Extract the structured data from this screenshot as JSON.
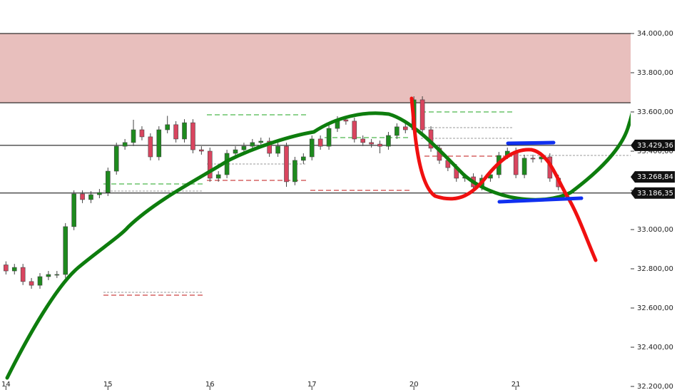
{
  "chart_data": {
    "type": "candlestick",
    "categories": [
      null,
      null,
      null,
      null,
      null,
      null,
      null,
      null,
      null,
      null,
      null,
      null,
      null,
      null,
      null,
      null,
      null,
      null,
      null,
      null,
      null,
      null,
      null,
      null,
      null,
      null,
      null,
      null,
      null,
      null,
      null,
      null,
      null,
      null,
      null,
      null,
      null,
      null,
      null,
      null,
      null,
      null,
      null,
      null,
      null,
      null,
      null,
      null,
      null,
      null,
      null,
      null,
      null,
      null,
      null,
      null,
      null,
      null,
      null,
      null,
      null,
      null,
      null,
      null,
      null,
      null
    ],
    "open": [
      32820,
      32789,
      32807,
      32735,
      32716,
      32760,
      32771,
      32771,
      33015,
      33182,
      33153,
      33178,
      33189,
      33298,
      33425,
      33444,
      33509,
      33473,
      33371,
      33509,
      33535,
      33462,
      33545,
      33407,
      33400,
      33262,
      33280,
      33389,
      33407,
      33425,
      33444,
      33451,
      33389,
      33425,
      33244,
      33353,
      33371,
      33462,
      33425,
      33516,
      33560,
      33553,
      33462,
      33444,
      33436,
      33425,
      33480,
      33524,
      33509,
      33662,
      33509,
      33415,
      33353,
      33316,
      33262,
      33269,
      33218,
      33262,
      33280,
      33378,
      33400,
      33280,
      33364,
      33360,
      33371,
      33262
    ],
    "high": [
      32838,
      32825,
      32825,
      32753,
      32778,
      32789,
      32789,
      33033,
      33200,
      33200,
      33196,
      33207,
      33316,
      33443,
      33462,
      33560,
      33527,
      33491,
      33527,
      33580,
      33553,
      33563,
      33563,
      33425,
      33418,
      33298,
      33407,
      33425,
      33443,
      33462,
      33469,
      33469,
      33443,
      33443,
      33371,
      33389,
      33480,
      33480,
      33534,
      33578,
      33578,
      33571,
      33480,
      33462,
      33454,
      33498,
      33542,
      33542,
      33680,
      33680,
      33527,
      33433,
      33371,
      33334,
      33287,
      33287,
      33280,
      33298,
      33396,
      33418,
      33418,
      33382,
      33382,
      33389,
      33389,
      33280
    ],
    "low": [
      32771,
      32771,
      32717,
      32698,
      32698,
      32742,
      32753,
      32753,
      32997,
      33135,
      33135,
      33160,
      33171,
      33280,
      33407,
      33426,
      33455,
      33353,
      33353,
      33491,
      33444,
      33444,
      33389,
      33382,
      33244,
      33244,
      33262,
      33371,
      33389,
      33407,
      33426,
      33371,
      33371,
      33218,
      33226,
      33335,
      33353,
      33407,
      33407,
      33498,
      33535,
      33444,
      33426,
      33418,
      33389,
      33407,
      33462,
      33491,
      33491,
      33491,
      33397,
      33335,
      33298,
      33244,
      33244,
      33200,
      33200,
      33244,
      33262,
      33360,
      33262,
      33262,
      33342,
      33342,
      33244,
      33200
    ],
    "close": [
      32789,
      32807,
      32735,
      32716,
      32760,
      32771,
      32771,
      33015,
      33182,
      33153,
      33178,
      33189,
      33298,
      33425,
      33444,
      33509,
      33473,
      33371,
      33509,
      33535,
      33462,
      33545,
      33407,
      33400,
      33262,
      33280,
      33389,
      33407,
      33425,
      33444,
      33451,
      33389,
      33425,
      33244,
      33353,
      33371,
      33462,
      33425,
      33516,
      33560,
      33553,
      33462,
      33444,
      33436,
      33425,
      33480,
      33524,
      33509,
      33662,
      33509,
      33415,
      33353,
      33316,
      33262,
      33269,
      33218,
      33262,
      33280,
      33378,
      33400,
      33280,
      33364,
      33360,
      33371,
      33262,
      33218
    ],
    "up_color": "#1e8a1e",
    "down_color": "#d9455f",
    "xlim": [
      -0.7,
      73.5
    ],
    "xticks": [
      {
        "value": 0,
        "label": "14"
      },
      {
        "value": 12,
        "label": "15"
      },
      {
        "value": 24,
        "label": "16"
      },
      {
        "value": 36,
        "label": "17"
      },
      {
        "value": 48,
        "label": "20"
      },
      {
        "value": 60,
        "label": "21"
      }
    ],
    "ylim": [
      32181.8,
      34170.9
    ],
    "yticks": [
      {
        "value": 34000,
        "label": "34.000,00"
      },
      {
        "value": 33800,
        "label": "33.800,00"
      },
      {
        "value": 33600,
        "label": "33.600,00"
      },
      {
        "value": 33400,
        "label": "33.400,00"
      },
      {
        "value": 33200,
        "label": "33.200,00"
      },
      {
        "value": 33000,
        "label": "33.000,00"
      },
      {
        "value": 32800,
        "label": "32.800,00"
      },
      {
        "value": 32600,
        "label": "32.600,00"
      },
      {
        "value": 32400,
        "label": "32.400,00"
      },
      {
        "value": 32200,
        "label": "32.200,00"
      }
    ],
    "zone": [
      33647,
      34000
    ],
    "zone_color": "#e8bfbd",
    "levels": [
      34000,
      33647,
      33429.36,
      33186.35
    ],
    "price_labels": [
      {
        "value": 33429.36,
        "label": "33.429,36"
      },
      {
        "value": 33268.84,
        "label": "33.268,84"
      },
      {
        "value": 33186.35,
        "label": "33.186,35"
      }
    ]
  }
}
